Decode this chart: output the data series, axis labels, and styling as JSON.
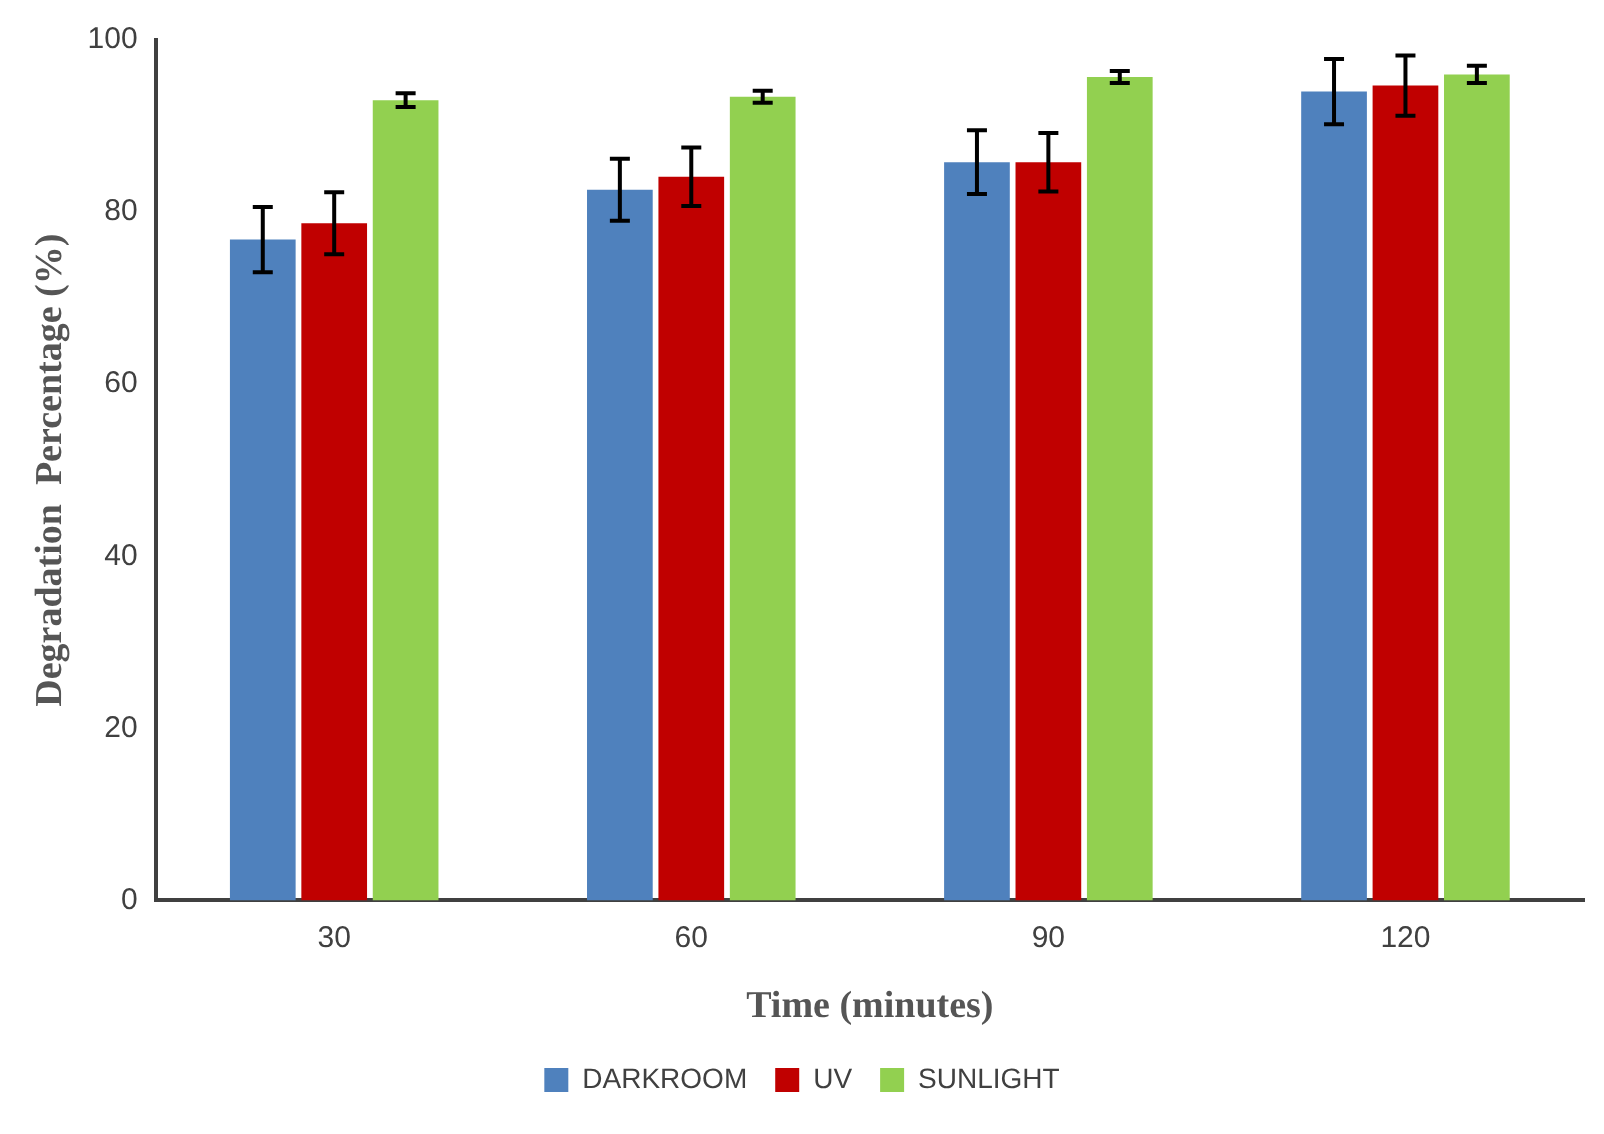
{
  "chart_data": {
    "type": "bar",
    "xlabel": "Time (minutes)",
    "ylabel": "Degradation  Percentage (%)",
    "categories": [
      "30",
      "60",
      "90",
      "120"
    ],
    "series": [
      {
        "name": "DARKROOM",
        "color": "#4f81bd",
        "values": [
          76.8,
          82.6,
          85.8,
          94.0
        ],
        "errors": [
          3.8,
          3.6,
          3.7,
          3.8
        ]
      },
      {
        "name": "UV",
        "color": "#c00000",
        "values": [
          78.7,
          84.1,
          85.8,
          94.7
        ],
        "errors": [
          3.6,
          3.4,
          3.4,
          3.5
        ]
      },
      {
        "name": "SUNLIGHT",
        "color": "#92d050",
        "values": [
          93.0,
          93.4,
          95.7,
          96.0
        ],
        "errors": [
          0.8,
          0.7,
          0.7,
          1.0
        ]
      }
    ],
    "ylim": [
      0,
      100
    ],
    "yticks": [
      0,
      20,
      40,
      60,
      80,
      100
    ],
    "grid": false,
    "legend": "bottom"
  }
}
